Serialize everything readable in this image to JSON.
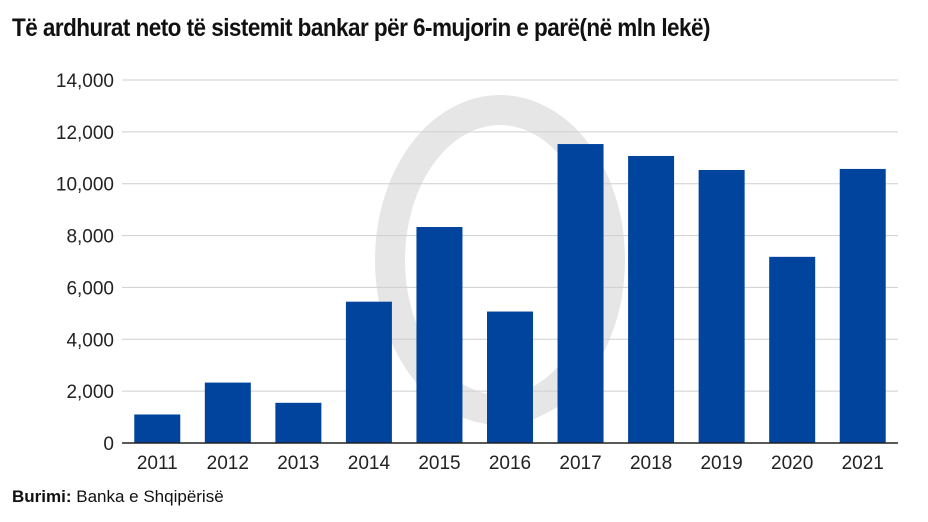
{
  "chart_data": {
    "type": "bar",
    "title": "Të ardhurat neto të sistemit bankar për 6-mujorin e parë(në mln lekë)",
    "categories": [
      "2011",
      "2012",
      "2013",
      "2014",
      "2015",
      "2016",
      "2017",
      "2018",
      "2019",
      "2020",
      "2021"
    ],
    "values": [
      1100,
      2330,
      1550,
      5450,
      8330,
      5070,
      11530,
      11070,
      10530,
      7180,
      10570
    ],
    "ylim": [
      0,
      14000
    ],
    "yticks": [
      0,
      2000,
      4000,
      6000,
      8000,
      10000,
      12000,
      14000
    ],
    "ytick_labels": [
      "0",
      "2,000",
      "4,000",
      "6,000",
      "8,000",
      "10,000",
      "12,000",
      "14,000"
    ],
    "xlabel": "",
    "ylabel": "",
    "grid": true,
    "bar_color": "#00449e"
  },
  "source": {
    "label": "Burimi:",
    "text": "Banka e Shqipërisë"
  }
}
